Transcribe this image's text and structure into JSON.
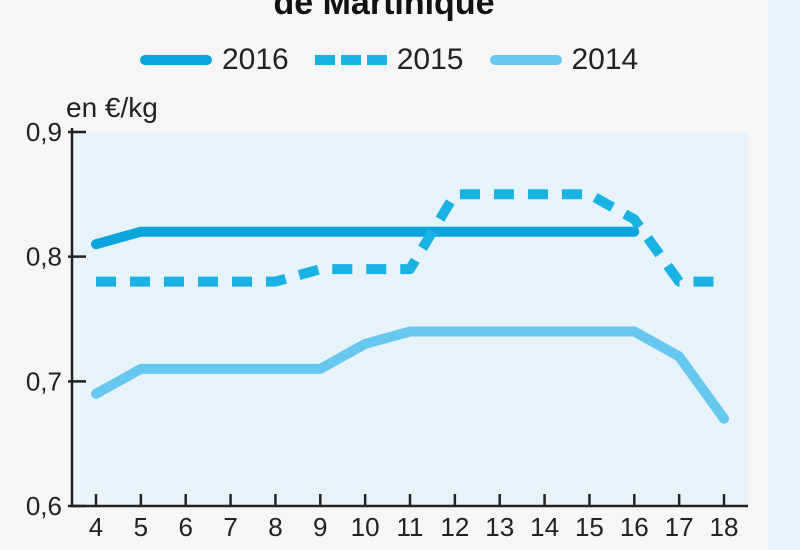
{
  "chart_data": {
    "type": "line",
    "title": "de Martinique",
    "ylabel": "en €/kg",
    "xlabel": "",
    "x": [
      4,
      5,
      6,
      7,
      8,
      9,
      10,
      11,
      12,
      13,
      14,
      15,
      16,
      17,
      18
    ],
    "xlim": [
      4,
      18
    ],
    "ylim": [
      0.6,
      0.9
    ],
    "yticks": [
      0.6,
      0.7,
      0.8,
      0.9
    ],
    "ytick_labels": [
      "0,6",
      "0,7",
      "0,8",
      "0,9"
    ],
    "grid": false,
    "legend_position": "top",
    "series": [
      {
        "name": "2016",
        "style": "solid",
        "color": "#0aa5dc",
        "x": [
          4,
          5,
          6,
          7,
          8,
          9,
          10,
          11,
          12,
          13,
          14,
          15,
          16
        ],
        "values": [
          0.81,
          0.82,
          0.82,
          0.82,
          0.82,
          0.82,
          0.82,
          0.82,
          0.82,
          0.82,
          0.82,
          0.82,
          0.82
        ]
      },
      {
        "name": "2015",
        "style": "dashed",
        "color": "#19b2e3",
        "x": [
          4,
          5,
          6,
          7,
          8,
          9,
          10,
          11,
          12,
          13,
          14,
          15,
          16,
          17,
          18
        ],
        "values": [
          0.78,
          0.78,
          0.78,
          0.78,
          0.78,
          0.79,
          0.79,
          0.79,
          0.85,
          0.85,
          0.85,
          0.85,
          0.83,
          0.78,
          0.78
        ]
      },
      {
        "name": "2014",
        "style": "solid",
        "color": "#66c7ef",
        "x": [
          4,
          5,
          6,
          7,
          8,
          9,
          10,
          11,
          12,
          13,
          14,
          15,
          16,
          17,
          18
        ],
        "values": [
          0.69,
          0.71,
          0.71,
          0.71,
          0.71,
          0.71,
          0.73,
          0.74,
          0.74,
          0.74,
          0.74,
          0.74,
          0.74,
          0.72,
          0.67
        ]
      }
    ],
    "plot_background": "#e6f3fb"
  }
}
